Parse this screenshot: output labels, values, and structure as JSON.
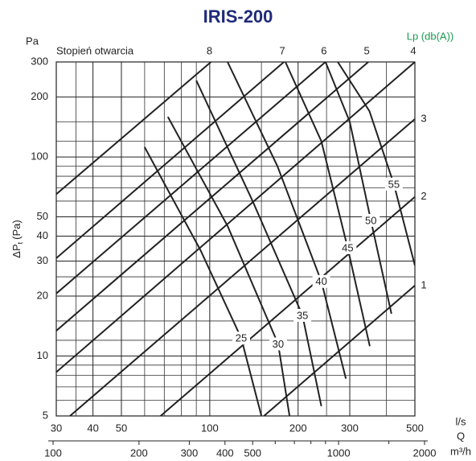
{
  "chart_data": {
    "type": "line",
    "title": "IRIS-200",
    "yunit": "Pa",
    "ylabel": "ΔP",
    "ylabel_sub": "t",
    "ylabel_unit": "(Pa)",
    "xlabel": "l/s",
    "qlabel": "Q",
    "x2label": "m³/h",
    "xscale": "log",
    "yscale": "log",
    "xlim": [
      30,
      500
    ],
    "xticks": [
      30,
      40,
      50,
      100,
      200,
      300,
      500
    ],
    "xminor": [
      35,
      60,
      70,
      80,
      90,
      150,
      250,
      400
    ],
    "ylim": [
      5,
      300
    ],
    "yticks": [
      5,
      10,
      20,
      30,
      40,
      50,
      100,
      200,
      300
    ],
    "yminor": [
      6,
      7,
      8,
      9,
      12,
      15,
      25,
      60,
      70,
      80,
      90,
      120,
      150
    ],
    "x2lim": [
      100,
      2000
    ],
    "x2ticks": [
      100,
      200,
      300,
      400,
      500,
      1000,
      2000
    ],
    "x2minor": [
      600,
      700,
      800,
      900,
      1500
    ],
    "series_title": "Stopień otwarcia",
    "line_color": "#222222",
    "series": [
      {
        "name": "8",
        "x": [
          30,
          101
        ],
        "values": [
          65,
          300
        ]
      },
      {
        "name": "7",
        "x": [
          30,
          179
        ],
        "values": [
          31,
          300
        ]
      },
      {
        "name": "6",
        "x": [
          30,
          248
        ],
        "values": [
          20.6,
          300
        ]
      },
      {
        "name": "5",
        "x": [
          30,
          347
        ],
        "values": [
          13.4,
          300
        ]
      },
      {
        "name": "4",
        "x": [
          30,
          500
        ],
        "values": [
          8.3,
          300
        ]
      },
      {
        "name": "3",
        "x": [
          33.4,
          500
        ],
        "values": [
          5,
          155
        ]
      },
      {
        "name": "2",
        "x": [
          68,
          500
        ],
        "values": [
          5,
          63
        ]
      },
      {
        "name": "1",
        "x": [
          153,
          500
        ],
        "values": [
          5,
          22.6
        ]
      }
    ],
    "noise_title": "Lp (db(A))",
    "noise_color": "#1a9a50",
    "noise": [
      {
        "name": "25",
        "x": [
          60,
          93,
          128,
          150
        ],
        "values": [
          112,
          34,
          12.3,
          5
        ]
      },
      {
        "name": "30",
        "x": [
          72,
          115,
          171,
          187
        ],
        "values": [
          159,
          45,
          11.5,
          5
        ]
      },
      {
        "name": "35",
        "x": [
          90,
          140,
          207,
          240
        ],
        "values": [
          242,
          60,
          16,
          5.6
        ]
      },
      {
        "name": "40",
        "x": [
          115,
          170,
          240,
          291
        ],
        "values": [
          300,
          90,
          23.7,
          7.7
        ]
      },
      {
        "name": "45",
        "x": [
          181,
          240,
          295,
          351
        ],
        "values": [
          300,
          120,
          35,
          11.2
        ]
      },
      {
        "name": "50",
        "x": [
          248,
          300,
          354,
          416
        ],
        "values": [
          300,
          150,
          48,
          16.3
        ]
      },
      {
        "name": "55",
        "x": [
          273,
          350,
          424,
          500
        ],
        "values": [
          300,
          170,
          73,
          28.5
        ]
      }
    ]
  }
}
